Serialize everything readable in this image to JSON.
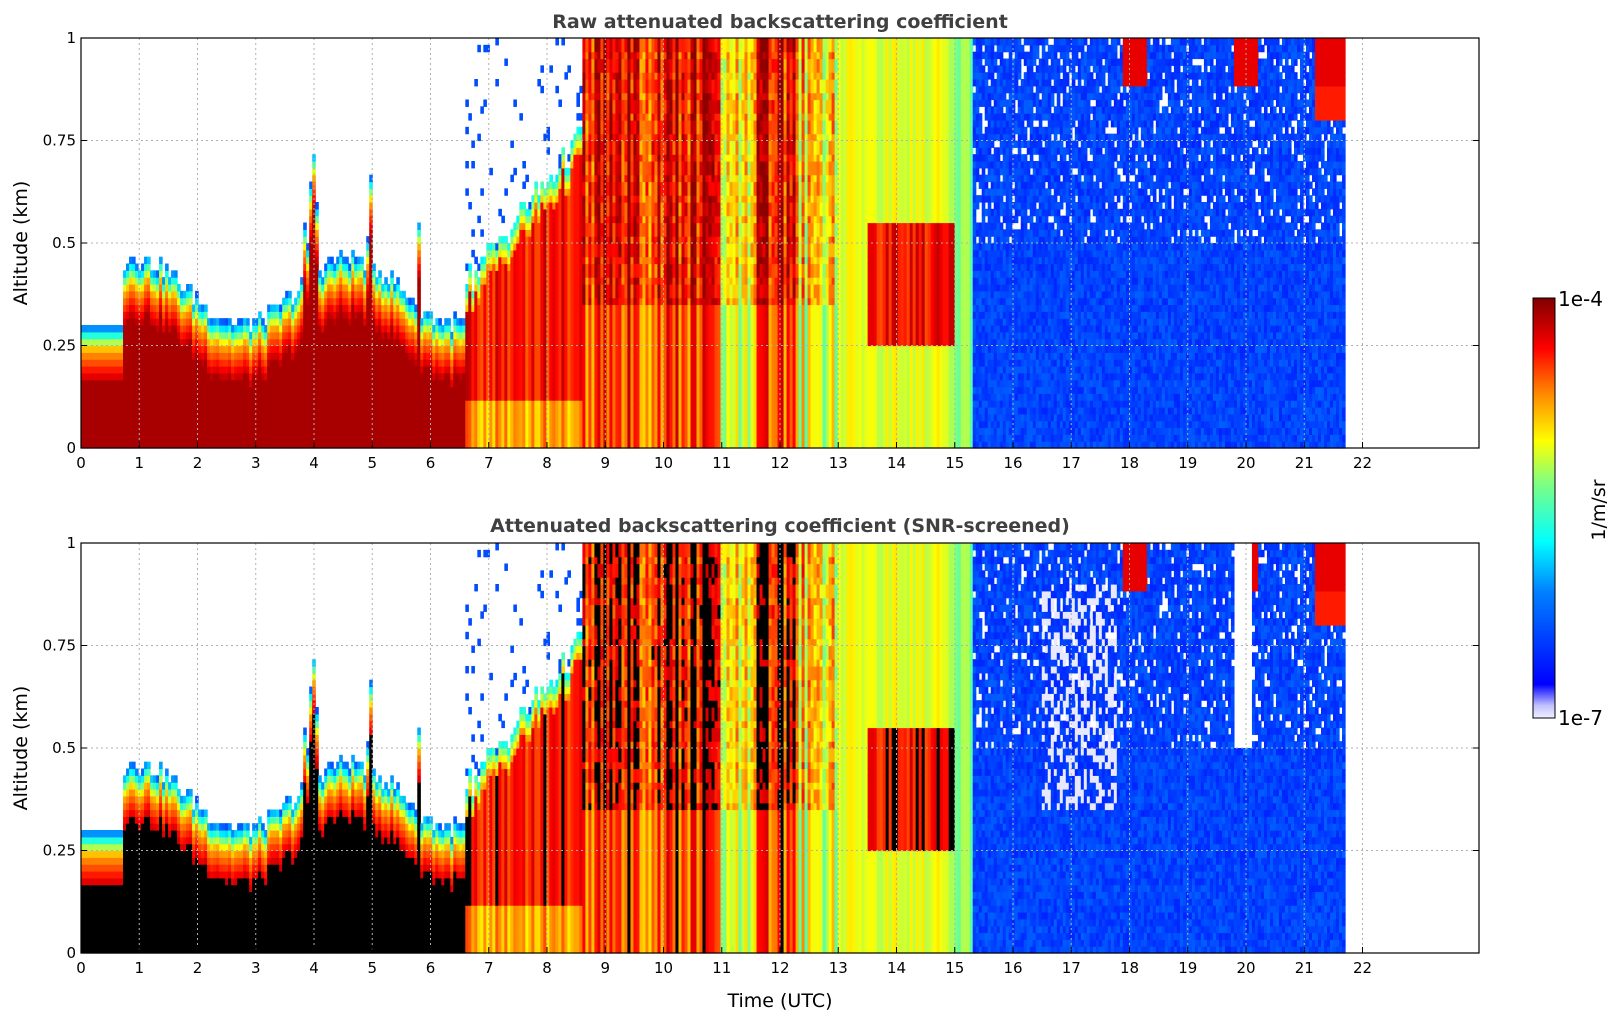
{
  "chart_data": [
    {
      "type": "heatmap",
      "title": "Raw attenuated backscattering coefficient",
      "ylabel": "Altitude (km)",
      "xlabel": "",
      "xlim": [
        0,
        24
      ],
      "ylim": [
        0,
        1
      ],
      "x_ticks": [
        "0",
        "1",
        "2",
        "3",
        "4",
        "5",
        "6",
        "7",
        "8",
        "9",
        "10",
        "11",
        "12",
        "13",
        "14",
        "15",
        "16",
        "17",
        "18",
        "19",
        "20",
        "21",
        "22"
      ],
      "y_ticks": [
        "0",
        "0.25",
        "0.5",
        "0.75",
        "1"
      ],
      "grid": true,
      "data_extent_hours": 21.7,
      "screened": false
    },
    {
      "type": "heatmap",
      "title": "Attenuated backscattering coefficient (SNR-screened)",
      "ylabel": "Altitude (km)",
      "xlabel": "Time (UTC)",
      "xlim": [
        0,
        24
      ],
      "ylim": [
        0,
        1
      ],
      "x_ticks": [
        "0",
        "1",
        "2",
        "3",
        "4",
        "5",
        "6",
        "7",
        "8",
        "9",
        "10",
        "11",
        "12",
        "13",
        "14",
        "15",
        "16",
        "17",
        "18",
        "19",
        "20",
        "21",
        "22"
      ],
      "y_ticks": [
        "0",
        "0.25",
        "0.5",
        "0.75",
        "1"
      ],
      "grid": true,
      "data_extent_hours": 21.7,
      "screened": true
    }
  ],
  "colorbar": {
    "label": "1/m/sr",
    "max_label": "1e-4",
    "min_label": "1e-7",
    "colormap": "jet",
    "scale": "log"
  },
  "colors": {
    "dark_red": "#800000",
    "red": "#ff2000",
    "yellow": "#ffff00",
    "cyan": "#00ffff",
    "blue": "#0020ff",
    "saturated_screened": "#000000"
  }
}
